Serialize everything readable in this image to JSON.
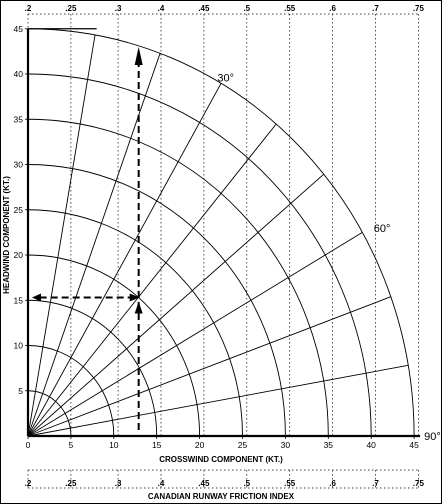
{
  "chart_data": {
    "type": "wind-component-nomogram",
    "xlabel": "CROSSWIND COMPONENT (KT.)",
    "ylabel": "HEADWIND COMPONENT (KT.)",
    "bottom_axis_title": "CANADIAN RUNWAY FRICTION INDEX",
    "xlim": [
      0,
      45
    ],
    "ylim": [
      0,
      45
    ],
    "x_ticks": [
      0,
      5,
      10,
      15,
      20,
      25,
      30,
      35,
      40,
      45
    ],
    "y_ticks": [
      5,
      10,
      15,
      20,
      25,
      30,
      35,
      40,
      45
    ],
    "friction_index_ticks": [
      {
        "label": ".2",
        "x": 0
      },
      {
        "label": ".25",
        "x": 5
      },
      {
        "label": ".3",
        "x": 10.5
      },
      {
        "label": ".4",
        "x": 15.5
      },
      {
        "label": ".45",
        "x": 20.5
      },
      {
        "label": ".5",
        "x": 25.5
      },
      {
        "label": ".55",
        "x": 30.5
      },
      {
        "label": ".6",
        "x": 35.5
      },
      {
        "label": ".7",
        "x": 40.5
      },
      {
        "label": ".75",
        "x": 45.5
      }
    ],
    "wind_speed_arcs": [
      5,
      10,
      15,
      20,
      25,
      30,
      35,
      40,
      45
    ],
    "wind_angle_rays_deg": [
      0,
      10,
      20,
      30,
      40,
      50,
      60,
      70,
      80,
      90
    ],
    "angle_labels": [
      {
        "text": "30°",
        "deg": 30
      },
      {
        "text": "60°",
        "deg": 60
      },
      {
        "text": "90°",
        "deg": 90
      }
    ],
    "example": {
      "wind_speed": 20,
      "wind_angle_deg": 40,
      "crosswind": 12.9,
      "headwind": 15.3
    },
    "grid": true
  }
}
